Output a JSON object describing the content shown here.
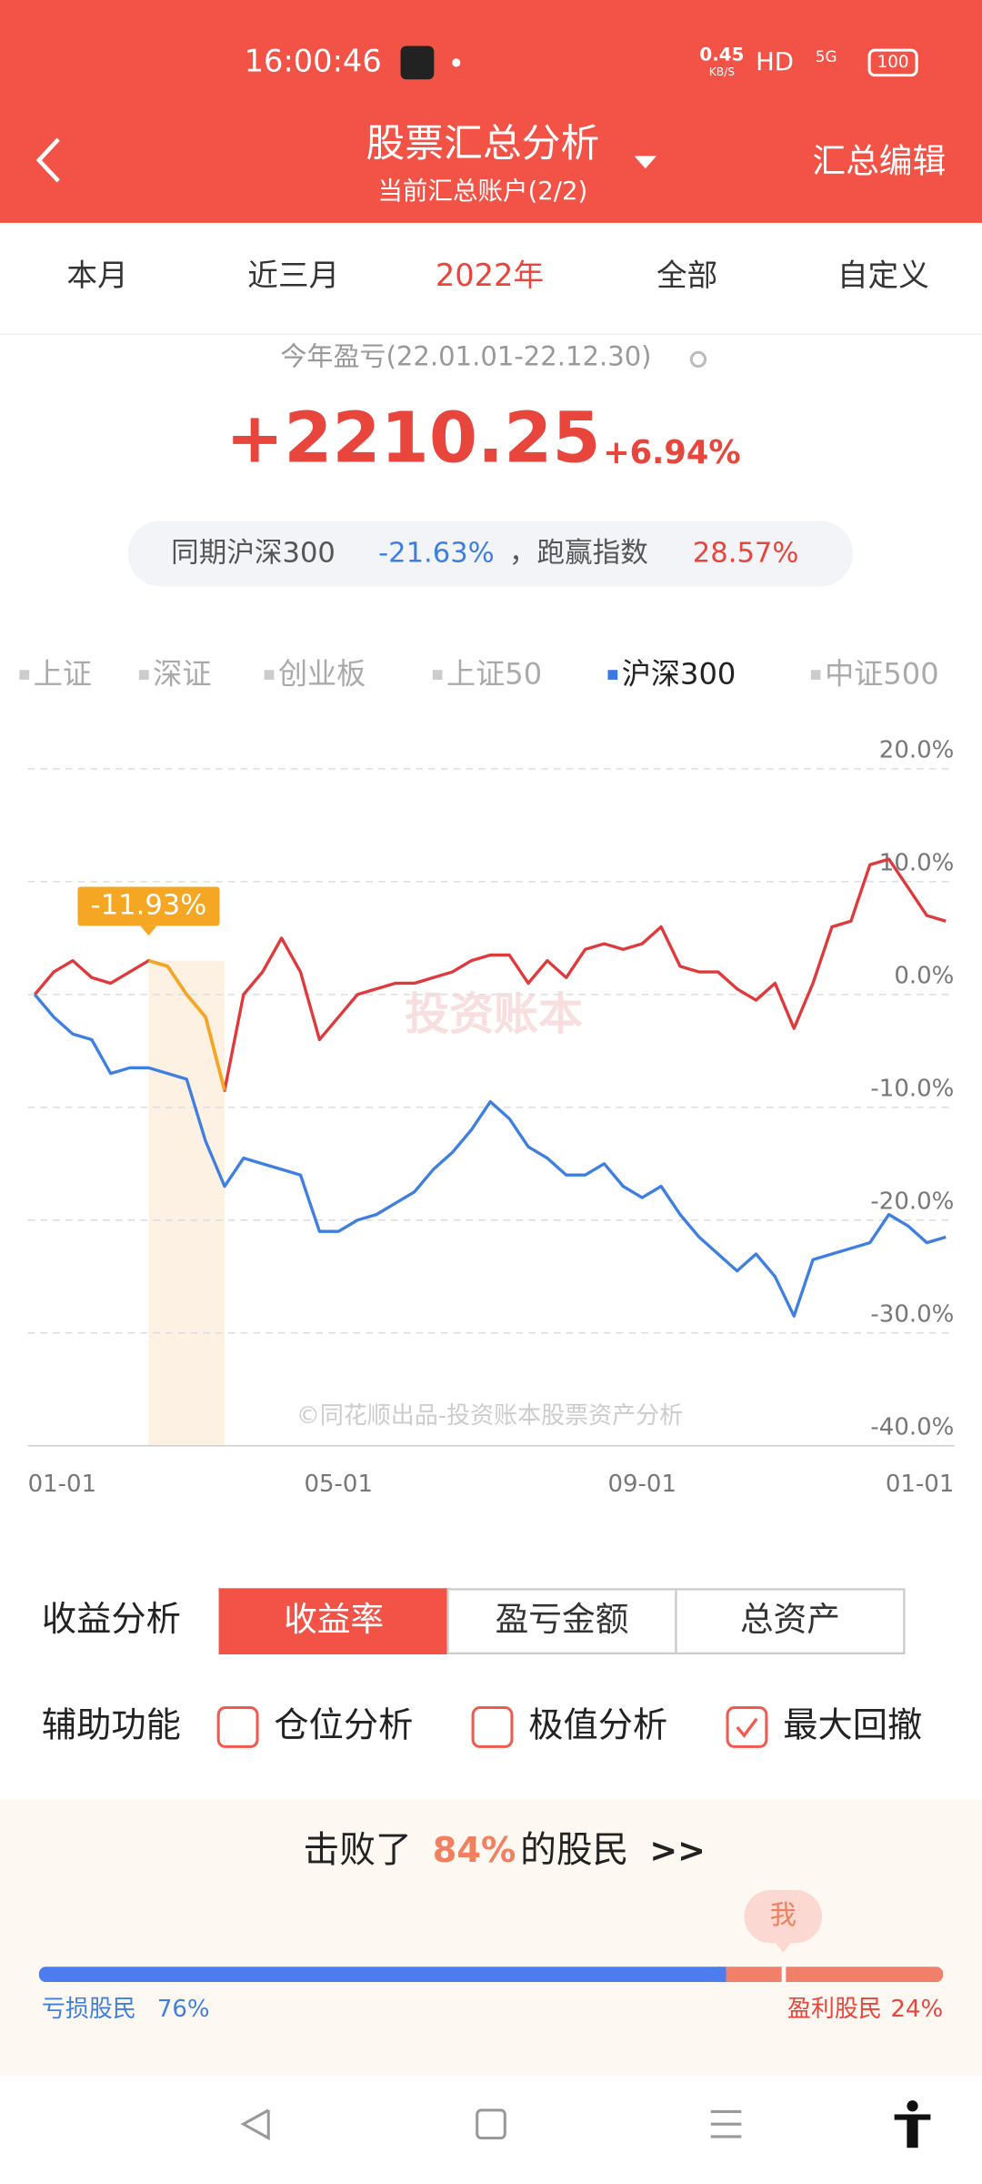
{
  "status_bar": {
    "time": "16:00:46",
    "net_speed": "0.45",
    "net_unit": "KB/S",
    "hd": "HD",
    "signal": "5G",
    "battery": "100"
  },
  "header": {
    "title": "股票汇总分析",
    "subtitle": "当前汇总账户(2/2)",
    "action": "汇总编辑"
  },
  "tabs": {
    "items": [
      "本月",
      "近三月",
      "2022年",
      "全部",
      "自定义"
    ],
    "active": 2
  },
  "summary": {
    "period_label": "今年盈亏(22.01.01-22.12.30)",
    "profit": "+2210.25",
    "return": "+6.94%",
    "compare_label": "同期沪深300",
    "index_return": "-21.63%",
    "beat_label": "，跑赢指数",
    "excess_return": "28.57%"
  },
  "index_options": {
    "items": [
      "上证",
      "深证",
      "创业板",
      "上证50",
      "沪深300",
      "中证500"
    ],
    "active": 4,
    "active_color": "#3a78e6"
  },
  "chart_data": {
    "type": "line",
    "categories": [
      "01-01",
      null,
      null,
      null,
      null,
      null,
      null,
      null,
      null,
      null,
      null,
      null,
      null,
      null,
      null,
      null,
      "05-01",
      null,
      null,
      null,
      null,
      null,
      null,
      null,
      null,
      null,
      null,
      null,
      null,
      null,
      null,
      null,
      "09-01",
      null,
      null,
      null,
      null,
      null,
      null,
      null,
      null,
      null,
      null,
      null,
      null,
      null,
      null,
      null,
      "01-01"
    ],
    "series": [
      {
        "color": "#e0393b",
        "values": [
          0,
          2,
          3,
          1.5,
          1,
          2,
          3,
          2.5,
          0,
          -2,
          -8.5,
          0,
          2,
          5,
          2,
          -4,
          -2,
          0,
          0.5,
          1,
          1,
          1.5,
          2,
          3,
          3.5,
          3.5,
          1,
          3,
          1.5,
          4,
          4.5,
          4,
          4.5,
          6,
          2.5,
          2,
          2,
          0.5,
          -0.5,
          1,
          -3,
          1,
          6,
          6.5,
          11.5,
          12,
          9.5,
          7,
          6.5
        ]
      },
      {
        "color": "#3f7fe0",
        "values": [
          0,
          -2,
          -3.5,
          -4,
          -7,
          -6.5,
          -6.5,
          -7,
          -7.5,
          -13,
          -17,
          -14.5,
          -15,
          -15.5,
          -16,
          -21,
          -21,
          -20,
          -19.5,
          -18.5,
          -17.5,
          -15.5,
          -14,
          -12,
          -9.5,
          -11,
          -13.5,
          -14.5,
          -16,
          -16,
          -15,
          -17,
          -18,
          -17,
          -19.5,
          -21.5,
          -23,
          -24.5,
          -23,
          -25,
          -28.5,
          -23.5,
          -23,
          -22.5,
          -22,
          -19.5,
          -20.5,
          -22,
          -21.5
        ]
      }
    ],
    "ylim": [
      -40,
      20
    ],
    "yticks": [
      {
        "value": 20,
        "label": "20.0%"
      },
      {
        "value": 10,
        "label": "10.0%"
      },
      {
        "value": 0,
        "label": "0.0%"
      },
      {
        "value": -10,
        "label": "-10.0%"
      },
      {
        "value": -20,
        "label": "-20.0%"
      },
      {
        "value": -30,
        "label": "-30.0%"
      },
      {
        "value": -40,
        "label": "-40.0%"
      }
    ],
    "grid": true,
    "annotation": "-11.93%",
    "annotation_color": "#f5a623",
    "watermark": "投资账本",
    "credit": "©同花顺出品-投资账本股票资产分析"
  },
  "controls": {
    "analysis_label": "收益分析",
    "analysis_options": [
      "收益率",
      "盈亏金额",
      "总资产"
    ],
    "analysis_active": 0,
    "aux_label": "辅助功能",
    "aux_options": [
      {
        "label": "仓位分析",
        "checked": false
      },
      {
        "label": "极值分析",
        "checked": false
      },
      {
        "label": "最大回撤",
        "checked": true
      }
    ]
  },
  "ranking": {
    "prefix": "击败了",
    "percent": "84%",
    "suffix": "的股民",
    "more": ">>",
    "me": "我",
    "loss": {
      "label": "亏损股民",
      "value": 76,
      "value_label": "76%"
    },
    "profit": {
      "label": "盈利股民",
      "value": 24,
      "value_label": "24%"
    }
  }
}
